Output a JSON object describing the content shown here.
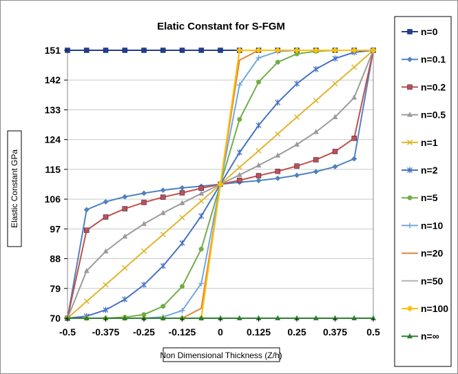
{
  "chart_data": {
    "type": "line",
    "title": "Elatic Constant for S-FGM",
    "xlabel": "Non Dimensional Thickness (Z/h)",
    "ylabel": "Elastic Constant GPa",
    "xlim": [
      -0.5,
      0.5
    ],
    "ylim": [
      70,
      151
    ],
    "x_ticks": [
      -0.5,
      -0.375,
      -0.25,
      -0.125,
      0,
      0.125,
      0.25,
      0.375,
      0.5
    ],
    "x_tick_labels": [
      "-0.5",
      "-0.375",
      "-0.25",
      "-0.125",
      "0",
      "0.125",
      "0.25",
      "0.375",
      "0.5"
    ],
    "y_ticks": [
      70,
      79,
      88,
      97,
      106,
      115,
      124,
      133,
      142,
      151
    ],
    "y_tick_labels": [
      "70",
      "79",
      "88",
      "97",
      "106",
      "115",
      "124",
      "133",
      "142",
      "151"
    ],
    "grid": "horizontal",
    "legend_position": "right",
    "x": [
      -0.5,
      -0.4375,
      -0.375,
      -0.3125,
      -0.25,
      -0.1875,
      -0.125,
      -0.0625,
      0,
      0.0625,
      0.125,
      0.1875,
      0.25,
      0.3125,
      0.375,
      0.4375,
      0.5
    ],
    "series": [
      {
        "name": "n=0",
        "color": "#1f3f8f",
        "marker": "square",
        "values": [
          151,
          151,
          151,
          151,
          151,
          151,
          151,
          151,
          151,
          151,
          151,
          151,
          151,
          151,
          151,
          151,
          151
        ]
      },
      {
        "name": "n=0.1",
        "color": "#4f81bd",
        "marker": "diamond",
        "values": [
          70,
          102.8,
          105.2,
          106.7,
          107.8,
          108.7,
          109.4,
          109.9,
          110.5,
          111.1,
          111.6,
          112.3,
          113.2,
          114.3,
          115.8,
          118.2,
          151
        ]
      },
      {
        "name": "n=0.2",
        "color": "#c0504d",
        "marker": "square",
        "values": [
          70,
          96.6,
          100.6,
          103.1,
          105.0,
          106.6,
          107.9,
          109.3,
          110.5,
          111.7,
          113.1,
          114.4,
          116.0,
          117.9,
          120.4,
          124.4,
          151
        ]
      },
      {
        "name": "n=0.5",
        "color": "#9b9b9b",
        "marker": "triangle",
        "values": [
          70,
          84.3,
          90.2,
          94.7,
          98.5,
          101.8,
          104.8,
          107.7,
          110.5,
          113.3,
          116.2,
          119.2,
          122.5,
          126.3,
          130.8,
          136.7,
          151
        ]
      },
      {
        "name": "n=1",
        "color": "#e0b52a",
        "marker": "x",
        "values": [
          70,
          75.1,
          80.1,
          85.2,
          90.3,
          95.3,
          100.4,
          105.4,
          110.5,
          115.6,
          120.6,
          125.7,
          130.8,
          135.8,
          140.9,
          145.9,
          151
        ]
      },
      {
        "name": "n=2",
        "color": "#4472c4",
        "marker": "star",
        "values": [
          70,
          70.6,
          72.5,
          75.7,
          80.1,
          85.8,
          92.7,
          100.9,
          110.5,
          120.1,
          128.3,
          135.2,
          140.9,
          145.3,
          148.5,
          150.4,
          151
        ]
      },
      {
        "name": "n=5",
        "color": "#70ad47",
        "marker": "circle",
        "values": [
          70,
          70.0,
          70.0,
          70.3,
          71.1,
          73.6,
          79.6,
          90.9,
          110.5,
          130.1,
          141.4,
          147.4,
          149.9,
          150.7,
          151.0,
          151.0,
          151.0
        ]
      },
      {
        "name": "n=10",
        "color": "#6fa8dc",
        "marker": "plus",
        "values": [
          70,
          70,
          70,
          70,
          70,
          70.4,
          72.3,
          80.5,
          110.5,
          140.5,
          148.7,
          150.6,
          151,
          151,
          151,
          151,
          151
        ]
      },
      {
        "name": "n=20",
        "color": "#e2843a",
        "marker": "none",
        "values": [
          70,
          70,
          70,
          70,
          70,
          70,
          70,
          73.0,
          110.5,
          148.0,
          151,
          151,
          151,
          151,
          151,
          151,
          151
        ]
      },
      {
        "name": "n=50",
        "color": "#b0b0b0",
        "marker": "none",
        "values": [
          70,
          70,
          70,
          70,
          70,
          70,
          70,
          70,
          110.5,
          151,
          151,
          151,
          151,
          151,
          151,
          151,
          151
        ]
      },
      {
        "name": "n=100",
        "color": "#ffc000",
        "marker": "diamond4",
        "values": [
          70,
          70,
          70,
          70,
          70,
          70,
          70,
          70,
          110.5,
          151,
          151,
          151,
          151,
          151,
          151,
          151,
          151
        ]
      },
      {
        "name": "n=∞",
        "color": "#2e7d32",
        "marker": "triangle",
        "values": [
          70,
          70,
          70,
          70,
          70,
          70,
          70,
          70,
          70,
          70,
          70,
          70,
          70,
          70,
          70,
          70,
          70
        ]
      }
    ]
  }
}
